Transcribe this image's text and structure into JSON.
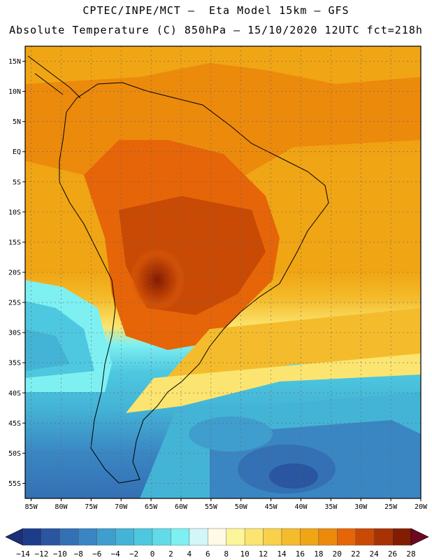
{
  "title": {
    "line1": "CPTEC/INPE/MCT –  Eta Model 15km – GFS",
    "line2": "Absolute Temperature (C) 850hPa – 15/10/2020 12UTC fct=218h"
  },
  "map": {
    "lat_labels": [
      "15N",
      "10N",
      "5N",
      "EQ",
      "5S",
      "10S",
      "15S",
      "20S",
      "25S",
      "30S",
      "35S",
      "40S",
      "45S",
      "50S",
      "55S"
    ],
    "lon_labels": [
      "85W",
      "80W",
      "75W",
      "70W",
      "65W",
      "60W",
      "55W",
      "50W",
      "45W",
      "40W",
      "35W",
      "30W",
      "25W",
      "20W"
    ],
    "lon_range": [
      -86,
      -20
    ],
    "lat_range": [
      -57.5,
      17.5
    ]
  },
  "colorbar": {
    "labels": [
      "-14",
      "-12",
      "-10",
      "-8",
      "-6",
      "-4",
      "-2",
      "0",
      "2",
      "4",
      "6",
      "8",
      "10",
      "12",
      "14",
      "16",
      "18",
      "20",
      "22",
      "24",
      "26",
      "28"
    ],
    "colors": [
      "#1e3c8c",
      "#2a55a0",
      "#3370b4",
      "#3a86c3",
      "#3f9ecd",
      "#44b4d6",
      "#4ec8e0",
      "#62dbe9",
      "#7ef0f2",
      "#d2f6fa",
      "#fffae8",
      "#fdf59a",
      "#fbe570",
      "#f9d048",
      "#f4bc2c",
      "#f0a514",
      "#ec8a0c",
      "#e66508",
      "#c84a05",
      "#a83204",
      "#821c02"
    ],
    "under_color": "#1c2e78",
    "over_color": "#6e0822"
  }
}
